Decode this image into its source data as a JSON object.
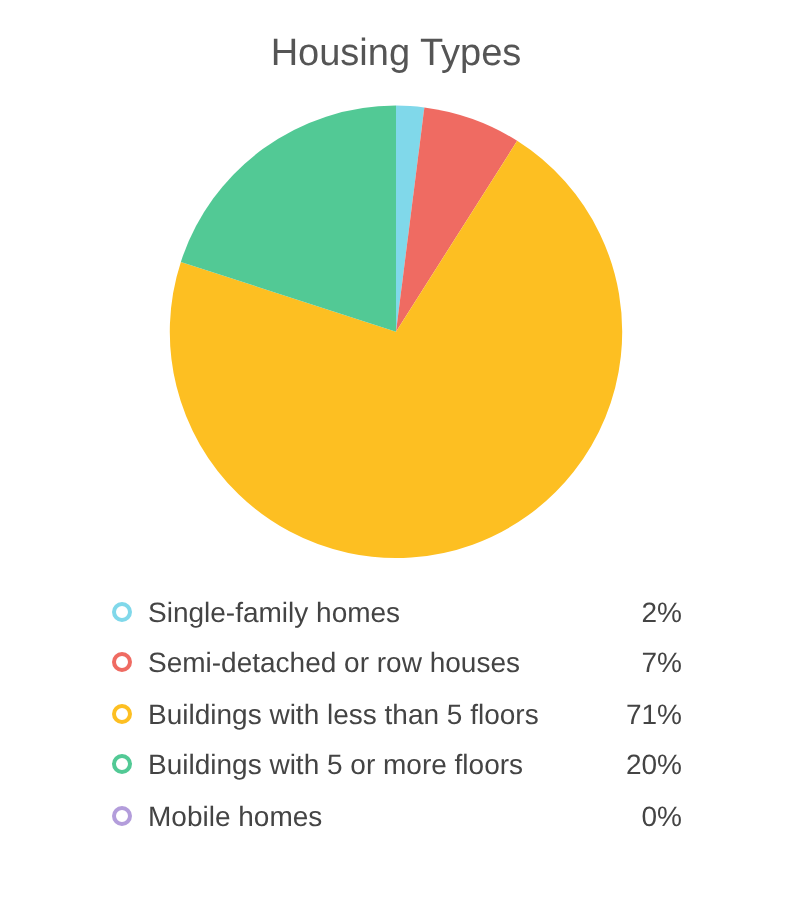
{
  "chart_data": {
    "type": "pie",
    "title": "Housing Types",
    "categories": [
      "Single-family homes",
      "Semi-detached or row houses",
      "Buildings with less than 5 floors",
      "Buildings with 5 or more floors",
      "Mobile homes"
    ],
    "values": [
      2,
      7,
      71,
      20,
      0
    ],
    "colors": [
      "#80d8ea",
      "#ef6b62",
      "#fdbf22",
      "#52c995",
      "#b39ddb"
    ],
    "value_labels": [
      "2%",
      "7%",
      "71%",
      "20%",
      "0%"
    ],
    "legend": "bottom"
  }
}
